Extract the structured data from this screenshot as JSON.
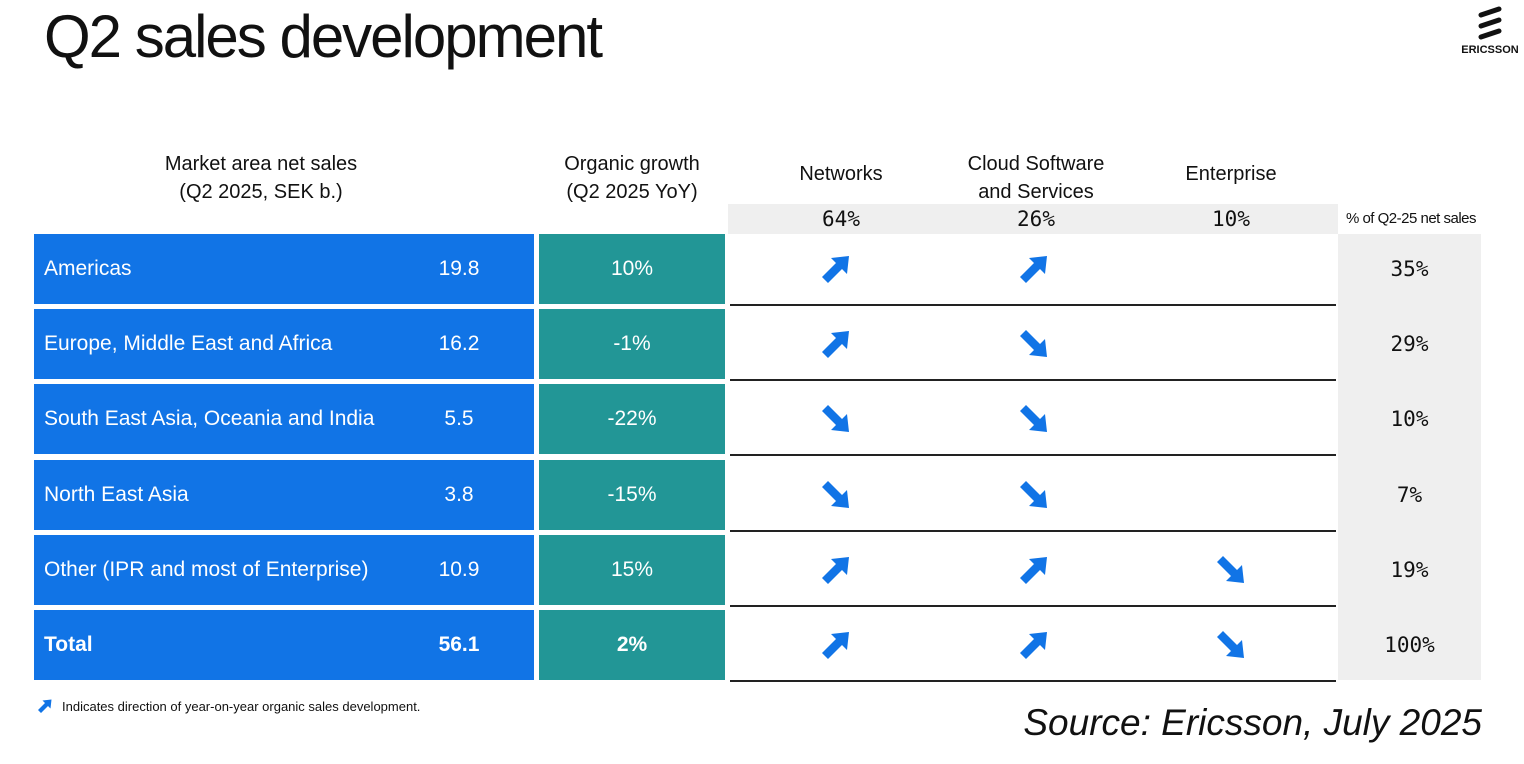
{
  "title": "Q2 sales development",
  "logo": {
    "text": "ERICSSON"
  },
  "headers": {
    "market_area_line1": "Market area net sales",
    "market_area_line2": "(Q2 2025, SEK b.)",
    "growth_line1": "Organic growth",
    "growth_line2": "(Q2 2025 YoY)",
    "networks": "Networks",
    "cloud_line1": "Cloud Software",
    "cloud_line2": "and Services",
    "enterprise": "Enterprise"
  },
  "segment_shares": {
    "networks": "64%",
    "cloud": "26%",
    "enterprise": "10%",
    "label": "% of Q2-25 net sales"
  },
  "rows": [
    {
      "name": "Americas",
      "sales": "19.8",
      "growth": "10%",
      "networks": "up",
      "cloud": "up",
      "enterprise": "",
      "share": "35%",
      "bold": false
    },
    {
      "name": "Europe, Middle East and Africa",
      "sales": "16.2",
      "growth": "-1%",
      "networks": "up",
      "cloud": "down",
      "enterprise": "",
      "share": "29%",
      "bold": false
    },
    {
      "name": "South East Asia, Oceania and India",
      "sales": "5.5",
      "growth": "-22%",
      "networks": "down",
      "cloud": "down",
      "enterprise": "",
      "share": "10%",
      "bold": false
    },
    {
      "name": "North East Asia",
      "sales": "3.8",
      "growth": "-15%",
      "networks": "down",
      "cloud": "down",
      "enterprise": "",
      "share": "7%",
      "bold": false
    },
    {
      "name": "Other (IPR and most of Enterprise)",
      "sales": "10.9",
      "growth": "15%",
      "networks": "up",
      "cloud": "up",
      "enterprise": "down",
      "share": "19%",
      "bold": false
    },
    {
      "name": "Total",
      "sales": "56.1",
      "growth": "2%",
      "networks": "up",
      "cloud": "up",
      "enterprise": "down",
      "share": "100%",
      "bold": true
    }
  ],
  "legend": {
    "icon": "arrow-up-right-icon",
    "text": "Indicates direction of year-on-year organic sales development."
  },
  "source": "Source: Ericsson, July 2025",
  "colors": {
    "region_blue": "#1174e6",
    "growth_teal": "#229696",
    "arrow_blue": "#1174e6",
    "share_gray": "#efefef"
  }
}
